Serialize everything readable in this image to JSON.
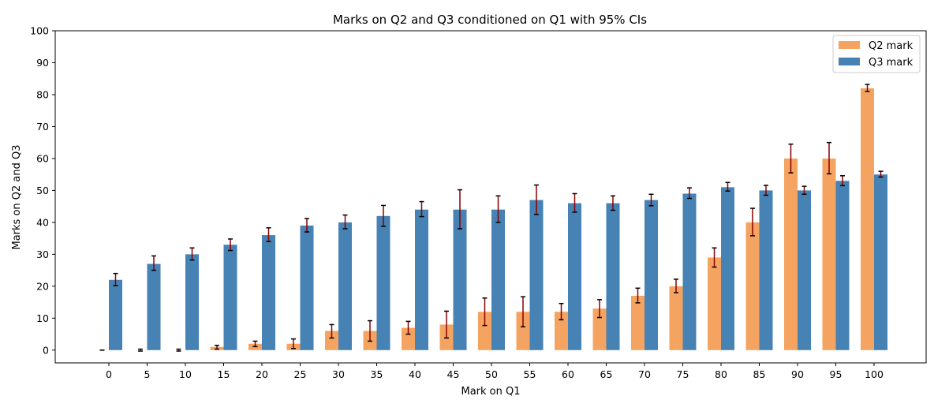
{
  "chart_data": {
    "type": "bar",
    "title": "Marks on Q2 and Q3 conditioned on Q1 with 95% CIs",
    "xlabel": "Mark on Q1",
    "ylabel": "Marks on Q2 and Q3",
    "ylim": [
      -4,
      100
    ],
    "yticks": [
      0,
      10,
      20,
      30,
      40,
      50,
      60,
      70,
      80,
      90,
      100
    ],
    "categories": [
      "0",
      "5",
      "10",
      "15",
      "20",
      "25",
      "30",
      "35",
      "40",
      "45",
      "50",
      "55",
      "60",
      "65",
      "70",
      "75",
      "80",
      "85",
      "90",
      "95",
      "100"
    ],
    "series": [
      {
        "name": "Q2 mark",
        "color": "#f4a460",
        "values": [
          0,
          0,
          0,
          1,
          2,
          2,
          6,
          6,
          7,
          8,
          12,
          12,
          12,
          13,
          17,
          20,
          29,
          40,
          60,
          60,
          82
        ],
        "ci_low": [
          0,
          -0.3,
          -0.3,
          0.3,
          1.1,
          0.5,
          3.8,
          2.8,
          5.0,
          3.8,
          7.7,
          7.3,
          9.5,
          10.2,
          14.8,
          18.0,
          26.0,
          35.8,
          55.5,
          55.2,
          81.0
        ],
        "ci_high": [
          0,
          0.3,
          0.3,
          1.5,
          2.8,
          3.5,
          8.0,
          9.2,
          9.0,
          12.2,
          16.3,
          16.7,
          14.6,
          15.8,
          19.4,
          22.2,
          32.0,
          44.4,
          64.5,
          65.0,
          83.2
        ]
      },
      {
        "name": "Q3 mark",
        "color": "#4682b4",
        "values": [
          22,
          27,
          30,
          33,
          36,
          39,
          40,
          42,
          44,
          44,
          44,
          47,
          46,
          46,
          47,
          49,
          51,
          50,
          50,
          53,
          55
        ],
        "ci_low": [
          20.2,
          25.0,
          28.2,
          31.2,
          34.0,
          37.0,
          38.0,
          38.8,
          41.8,
          38.0,
          40.0,
          42.5,
          43.2,
          43.8,
          45.2,
          47.5,
          49.8,
          48.5,
          48.8,
          51.5,
          54.2
        ],
        "ci_high": [
          24.0,
          29.5,
          32.0,
          34.8,
          38.3,
          41.2,
          42.3,
          45.3,
          46.5,
          50.2,
          48.3,
          51.7,
          49.0,
          48.3,
          48.8,
          50.8,
          52.5,
          51.6,
          51.3,
          54.6,
          56.0
        ]
      }
    ],
    "error_bar_color": "#8b0000",
    "legend_position": "top-right",
    "grid": false
  }
}
